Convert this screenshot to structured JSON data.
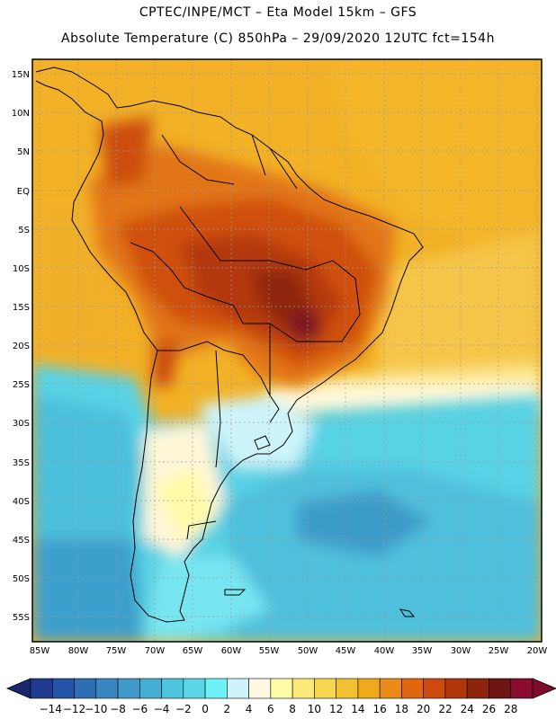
{
  "header": {
    "line1": "CPTEC/INPE/MCT –  Eta Model 15km – GFS",
    "line2": "Absolute Temperature (C) 850hPa – 29/09/2020 12UTC fct=154h"
  },
  "map": {
    "lat_labels": [
      "15N",
      "10N",
      "5N",
      "EQ",
      "5S",
      "10S",
      "15S",
      "20S",
      "25S",
      "30S",
      "35S",
      "40S",
      "45S",
      "50S",
      "55S"
    ],
    "lon_labels": [
      "85W",
      "80W",
      "75W",
      "70W",
      "65W",
      "60W",
      "55W",
      "50W",
      "45W",
      "40W",
      "35W",
      "30W",
      "25W",
      "20W"
    ]
  },
  "colorbar": {
    "labels": [
      "-14",
      "-12",
      "-10",
      "-8",
      "-6",
      "-4",
      "-2",
      "0",
      "2",
      "4",
      "6",
      "8",
      "10",
      "12",
      "14",
      "16",
      "18",
      "20",
      "22",
      "24",
      "26",
      "28"
    ],
    "colors": [
      "#1f3a8f",
      "#2354a5",
      "#2e6fb4",
      "#3a86c1",
      "#3f99c9",
      "#45aed3",
      "#4ec4df",
      "#5ad6e6",
      "#6df2f6",
      "#cdf4fb",
      "#fff8e3",
      "#fffca8",
      "#fbe979",
      "#f6d64e",
      "#f2c132",
      "#efa91a",
      "#ea8b17",
      "#e06710",
      "#cc4a0d",
      "#b0360a",
      "#8d240d",
      "#6b1515",
      "#8a0c2e"
    ],
    "arrow_left_color": "#1a2870",
    "arrow_right_color": "#7f0a2a"
  }
}
